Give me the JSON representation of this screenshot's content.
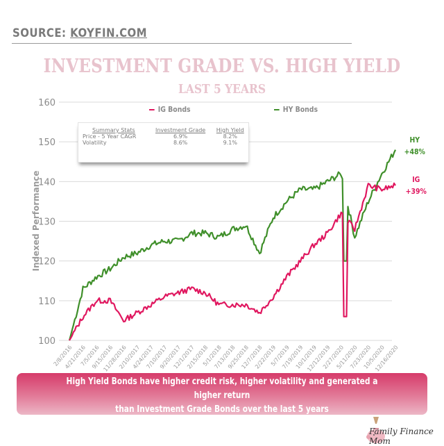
{
  "header": {
    "source_label": "SOURCE:",
    "source_link": "KOYFIN.COM",
    "title": "INVESTMENT GRADE VS. HIGH YIELD",
    "subtitle": "LAST 5 YEARS"
  },
  "legend": {
    "ig_label": "IG Bonds",
    "hy_label": "HY Bonds"
  },
  "stats_box": {
    "headers": [
      "Summary Stats",
      "Investment Grade",
      "High Yield"
    ],
    "rows": [
      [
        "Price - 5 Year CAGR",
        "6.9%",
        "8.2%"
      ],
      [
        "Volatility",
        "8.6%",
        "9.1%"
      ]
    ]
  },
  "end_labels": {
    "hy_name": "HY",
    "hy_value": "+48%",
    "ig_name": "IG",
    "ig_value": "+39%"
  },
  "banner": {
    "line1": "High Yield Bonds have higher credit risk, higher volatility and generated a higher return",
    "line2": "than Investment Grade Bonds over the last 5 years"
  },
  "logo": {
    "text": "Family Finance Mom"
  },
  "colors": {
    "ig": "#e0175f",
    "hy": "#3f8f2a",
    "title": "#e8c3cd",
    "banner": "#d63b6a",
    "grid": "#d9d9d9"
  },
  "chart_data": {
    "type": "line",
    "title": "Investment Grade vs. High Yield",
    "subtitle": "Last 5 Years",
    "xlabel": "",
    "ylabel": "Indexed Performance",
    "ylim": [
      100,
      160
    ],
    "yticks": [
      100,
      110,
      120,
      130,
      140,
      150,
      160
    ],
    "grid": true,
    "legend_position": "top",
    "categories": [
      "2/8/2016",
      "4/21/2016",
      "7/5/2016",
      "9/15/2016",
      "11/28/2016",
      "2/10/2017",
      "4/24/2017",
      "7/10/2017",
      "9/20/2017",
      "12/1/2017",
      "2/15/2018",
      "5/1/2018",
      "7/13/2018",
      "9/25/2018",
      "12/7/2018",
      "2/22/2019",
      "5/7/2019",
      "7/19/2019",
      "10/1/2019",
      "12/12/2019",
      "2/27/2020",
      "5/11/2020",
      "7/23/2020",
      "10/5/2020",
      "12/16/2020"
    ],
    "series": [
      {
        "name": "IG Bonds",
        "color": "#e0175f",
        "values": [
          100,
          106,
          110,
          110,
          105,
          107,
          109,
          111,
          112,
          113,
          112,
          109,
          109,
          109,
          107,
          111,
          116,
          120,
          124,
          127,
          132,
          128,
          139,
          138,
          139
        ]
      },
      {
        "name": "HY Bonds",
        "color": "#3f8f2a",
        "values": [
          100,
          113,
          116,
          118,
          121,
          122,
          124,
          125,
          125,
          127,
          127,
          126,
          128,
          129,
          122,
          131,
          135,
          138,
          138,
          140,
          142,
          126,
          135,
          142,
          148
        ]
      }
    ],
    "annotations": [
      "HY +48%",
      "IG +39%"
    ],
    "summary_stats": {
      "Price - 5 Year CAGR": {
        "Investment Grade": "6.9%",
        "High Yield": "8.2%"
      },
      "Volatility": {
        "Investment Grade": "8.6%",
        "High Yield": "9.1%"
      }
    }
  }
}
